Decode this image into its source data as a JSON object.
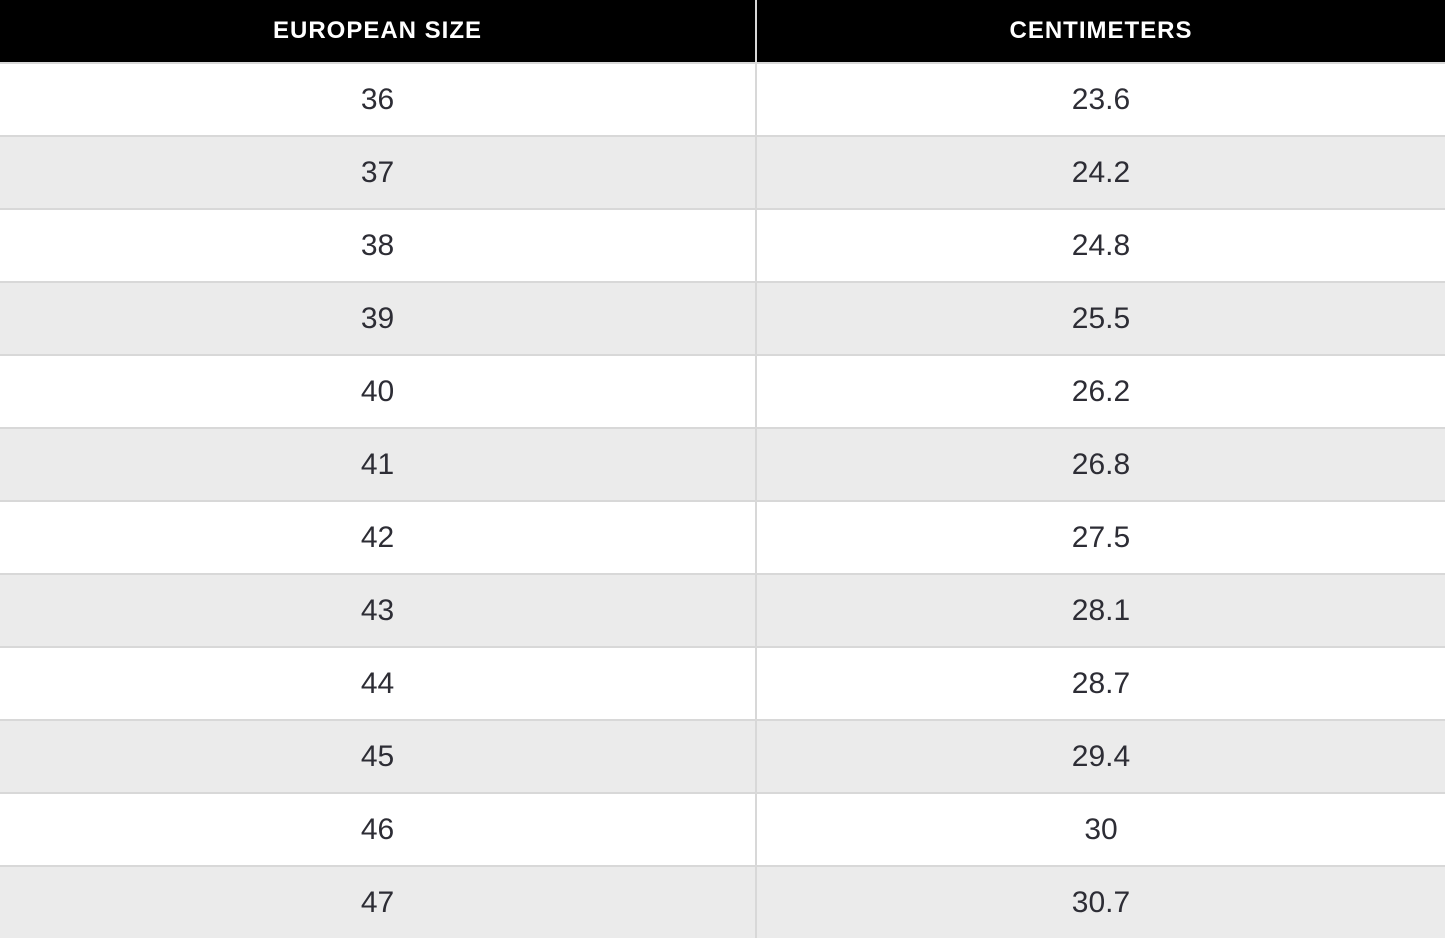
{
  "table": {
    "columns": [
      {
        "label": "EUROPEAN SIZE"
      },
      {
        "label": "CENTIMETERS"
      }
    ],
    "rows": [
      [
        "36",
        "23.6"
      ],
      [
        "37",
        "24.2"
      ],
      [
        "38",
        "24.8"
      ],
      [
        "39",
        "25.5"
      ],
      [
        "40",
        "26.2"
      ],
      [
        "41",
        "26.8"
      ],
      [
        "42",
        "27.5"
      ],
      [
        "43",
        "28.1"
      ],
      [
        "44",
        "28.7"
      ],
      [
        "45",
        "29.4"
      ],
      [
        "46",
        "30"
      ],
      [
        "47",
        "30.7"
      ]
    ]
  },
  "chart_data": {
    "type": "table",
    "title": "",
    "columns": [
      "EUROPEAN SIZE",
      "CENTIMETERS"
    ],
    "rows": [
      [
        36,
        23.6
      ],
      [
        37,
        24.2
      ],
      [
        38,
        24.8
      ],
      [
        39,
        25.5
      ],
      [
        40,
        26.2
      ],
      [
        41,
        26.8
      ],
      [
        42,
        27.5
      ],
      [
        43,
        28.1
      ],
      [
        44,
        28.7
      ],
      [
        45,
        29.4
      ],
      [
        46,
        30
      ],
      [
        47,
        30.7
      ]
    ],
    "layout": {
      "header_background": "#000000",
      "header_text_color": "#ffffff",
      "row_stripe_colors": [
        "#ffffff",
        "#ebebeb"
      ],
      "border_color": "#d8d8d8",
      "cell_text_color": "#2d2d35",
      "last_row_clipped": true
    }
  },
  "colors": {
    "header_bg": "#000000",
    "header_text": "#ffffff",
    "row_white": "#ffffff",
    "row_gray": "#ebebeb",
    "border": "#d8d8d8",
    "cell_text": "#2d2d35"
  }
}
